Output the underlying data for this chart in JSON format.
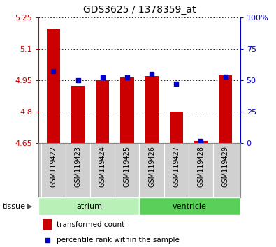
{
  "title": "GDS3625 / 1378359_at",
  "samples": [
    "GSM119422",
    "GSM119423",
    "GSM119424",
    "GSM119425",
    "GSM119426",
    "GSM119427",
    "GSM119428",
    "GSM119429"
  ],
  "transformed_counts": [
    5.195,
    4.925,
    4.95,
    4.965,
    4.97,
    4.8,
    4.66,
    4.975
  ],
  "percentile_ranks": [
    57,
    50,
    52,
    52,
    55,
    47,
    2,
    53
  ],
  "base_value": 4.65,
  "ylim_left": [
    4.65,
    5.25
  ],
  "ylim_right": [
    0,
    100
  ],
  "yticks_left": [
    4.65,
    4.8,
    4.95,
    5.1,
    5.25
  ],
  "yticks_right": [
    0,
    25,
    50,
    75,
    100
  ],
  "tissue_groups": [
    {
      "label": "atrium",
      "n_samples": 4,
      "color": "#b8f0b8"
    },
    {
      "label": "ventricle",
      "n_samples": 4,
      "color": "#5ad05a"
    }
  ],
  "bar_color": "#cc0000",
  "percentile_color": "#0000cc",
  "left_axis_color": "#cc0000",
  "right_axis_color": "#0000cc",
  "grid_color": "#000000",
  "tick_label_bg": "#d0d0d0",
  "tissue_label": "tissue",
  "legend_items": [
    {
      "label": "transformed count",
      "color": "#cc0000",
      "marker": "square"
    },
    {
      "label": "percentile rank within the sample",
      "color": "#0000cc",
      "marker": "s"
    }
  ]
}
